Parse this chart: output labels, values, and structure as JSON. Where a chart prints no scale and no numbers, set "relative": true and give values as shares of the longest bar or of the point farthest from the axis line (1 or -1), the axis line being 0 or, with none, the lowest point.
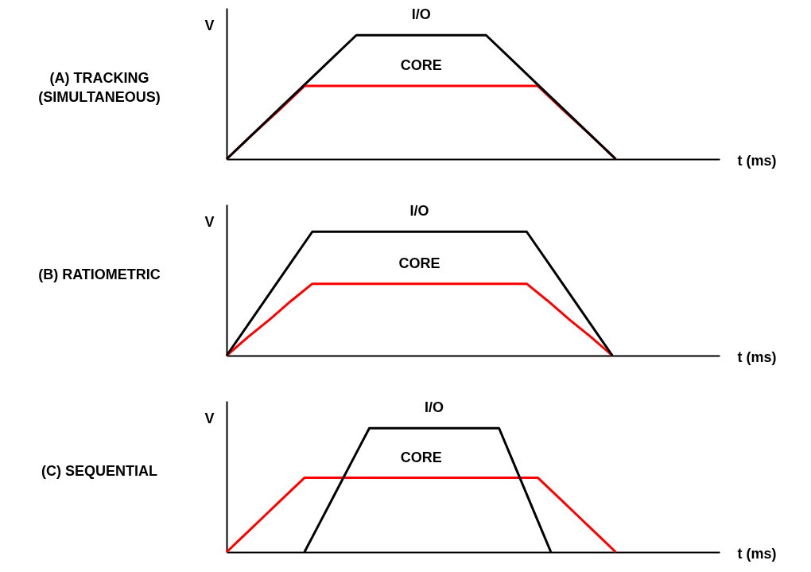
{
  "chart_data": [
    {
      "type": "line",
      "title": "(A) TRACKING\n(SIMULTANEOUS)",
      "xlabel": "t (ms)",
      "ylabel": "V",
      "relative": true,
      "categories": [
        null,
        null,
        null,
        null,
        null,
        null,
        null,
        null,
        null,
        null,
        null,
        null,
        null,
        null,
        null,
        null,
        null,
        null,
        null,
        null
      ],
      "series": [
        {
          "name": "CORE",
          "color": "#ff0000",
          "values": [
            0,
            0.2,
            0.39,
            0.59,
            0.59,
            0.59,
            0.59,
            0.59,
            0.59,
            0.59,
            0.59,
            0.59,
            0.59,
            0.39,
            0.2,
            0,
            null,
            null,
            null,
            null
          ]
        },
        {
          "name": "I/O",
          "color": "#000000",
          "values": [
            0,
            0.2,
            0.4,
            0.6,
            0.8,
            1,
            1,
            1,
            1,
            1,
            1,
            0.8,
            0.6,
            0.4,
            0.2,
            0,
            null,
            null,
            null,
            null
          ]
        }
      ]
    },
    {
      "type": "line",
      "title": "(B) RATIOMETRIC",
      "xlabel": "t (ms)",
      "ylabel": "V",
      "relative": true,
      "categories": [
        null,
        null,
        null,
        null,
        null,
        null,
        null,
        null,
        null,
        null,
        null,
        null,
        null,
        null,
        null,
        null,
        null,
        null,
        null,
        null,
        null,
        null,
        null,
        null
      ],
      "series": [
        {
          "name": "CORE",
          "color": "#ff0000",
          "values": [
            0,
            0.15,
            0.29,
            0.44,
            0.58,
            0.58,
            0.58,
            0.58,
            0.58,
            0.58,
            0.58,
            0.58,
            0.58,
            0.58,
            0.58,
            0.44,
            0.29,
            0.15,
            0,
            null,
            null,
            null,
            null,
            null
          ]
        },
        {
          "name": "I/O",
          "color": "#000000",
          "values": [
            0,
            0.25,
            0.5,
            0.75,
            1,
            1,
            1,
            1,
            1,
            1,
            1,
            1,
            1,
            1,
            1,
            0.75,
            0.5,
            0.25,
            0,
            null,
            null,
            null,
            null,
            null
          ]
        }
      ]
    },
    {
      "type": "line",
      "title": "(C) SEQUENTIAL",
      "xlabel": "t (ms)",
      "ylabel": "V",
      "relative": true,
      "categories": [
        null,
        null,
        null,
        null,
        null,
        null,
        null,
        null,
        null,
        null,
        null,
        null,
        null,
        null,
        null,
        null,
        null,
        null,
        null,
        null,
        null,
        null,
        null,
        null,
        null,
        null,
        null,
        null,
        null,
        null,
        null,
        null,
        null,
        null,
        null,
        null,
        null,
        null,
        null
      ],
      "series": [
        {
          "name": "CORE",
          "color": "#ff0000",
          "values": [
            0,
            0.1,
            0.2,
            0.3,
            0.4,
            0.5,
            0.6,
            0.6,
            0.6,
            0.6,
            0.6,
            0.6,
            0.6,
            0.6,
            0.6,
            0.6,
            0.6,
            0.6,
            0.6,
            0.6,
            0.6,
            0.6,
            0.6,
            0.6,
            0.6,
            0.5,
            0.4,
            0.3,
            0.2,
            0.1,
            0,
            null,
            null,
            null,
            null,
            null,
            null,
            null,
            null
          ]
        },
        {
          "name": "I/O",
          "color": "#000000",
          "values": [
            null,
            null,
            null,
            null,
            null,
            null,
            0,
            0.2,
            0.4,
            0.6,
            0.8,
            1,
            1,
            1,
            1,
            1,
            1,
            1,
            1,
            1,
            1,
            1,
            0.75,
            0.5,
            0.25,
            0,
            null,
            null,
            null,
            null,
            null,
            null,
            null,
            null,
            null,
            null,
            null,
            null,
            null
          ]
        }
      ]
    }
  ]
}
